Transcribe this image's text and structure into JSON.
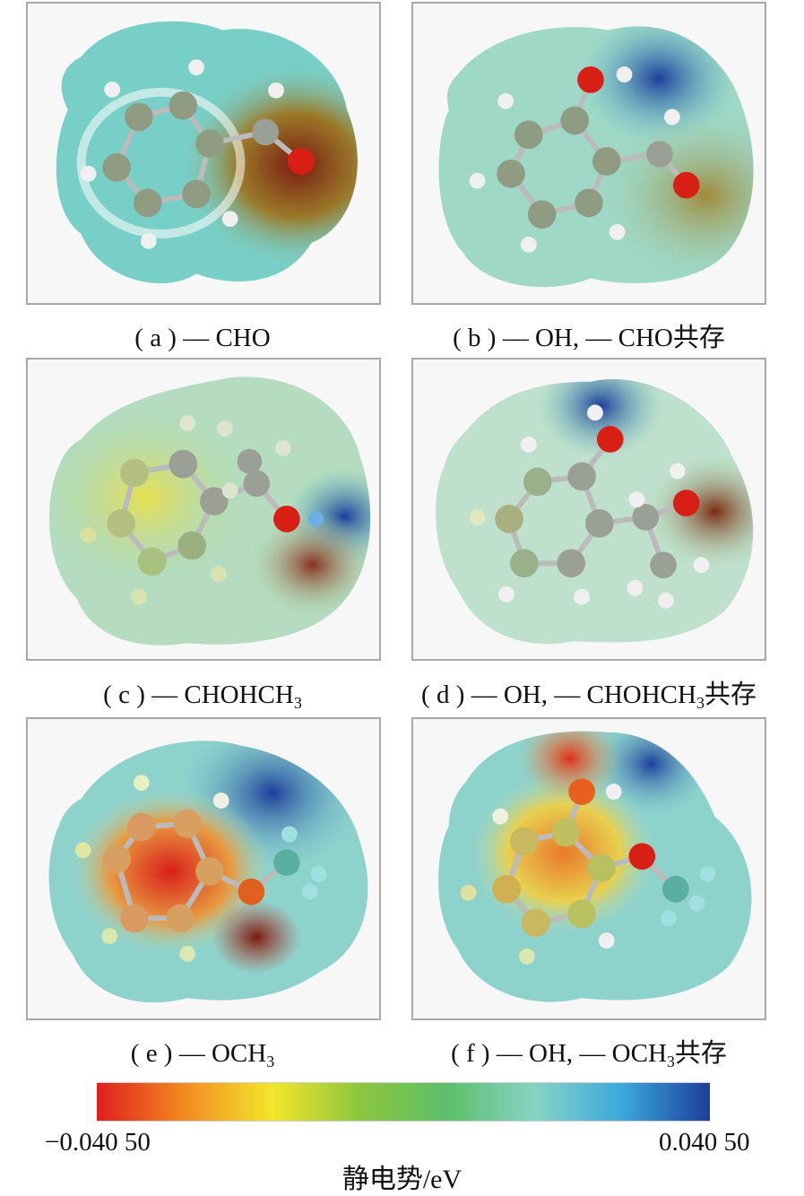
{
  "colors": {
    "neg": "#e11e1e",
    "low": "#f28a22",
    "mid_yellow": "#f2e62a",
    "green": "#6cbc3c",
    "cyan": "#46bcd8",
    "pos": "#1d3e9a",
    "carbon": "#8f9c82",
    "oxygen": "#d81f16",
    "hydrogen": "#f0f0f0"
  },
  "panels": [
    {
      "id": "a",
      "label_prefix": "( a ) — ",
      "label_main": "CHO",
      "label_sub": "",
      "label_suffix": ""
    },
    {
      "id": "b",
      "label_prefix": "( b ) — ",
      "label_main": "OH, — CHO共存",
      "label_sub": "",
      "label_suffix": ""
    },
    {
      "id": "c",
      "label_prefix": "( c ) — ",
      "label_main": "CHOHCH",
      "label_sub": "3",
      "label_suffix": ""
    },
    {
      "id": "d",
      "label_prefix": "( d ) — ",
      "label_main": "OH, — CHOHCH",
      "label_sub": "3",
      "label_suffix": "共存"
    },
    {
      "id": "e",
      "label_prefix": "( e ) — ",
      "label_main": "OCH",
      "label_sub": "3",
      "label_suffix": ""
    },
    {
      "id": "f",
      "label_prefix": "( f ) — ",
      "label_main": "OH, — OCH",
      "label_sub": "3",
      "label_suffix": "共存"
    }
  ],
  "colorbar": {
    "min_label": "−0.040 50",
    "max_label": "0.040 50",
    "title": "静电势/eV",
    "stops": [
      "#e11e1e",
      "#f28a22",
      "#f2e62a",
      "#8cc63e",
      "#5cbf6a",
      "#88d3c4",
      "#3aa8dc",
      "#1d3e9a"
    ]
  }
}
